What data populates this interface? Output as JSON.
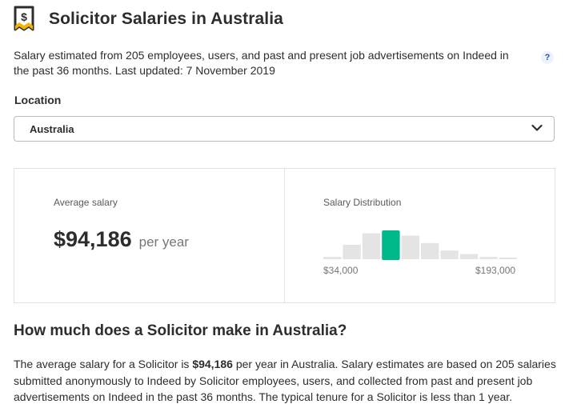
{
  "header": {
    "icon": "salary-dollar-icon",
    "title": "Solicitor Salaries in Australia"
  },
  "subtitle": "Salary estimated from 205 employees, users, and past and present job advertisements on Indeed in the past 36 months. Last updated: 7 November 2019",
  "help": {
    "label": "?",
    "icon": "help-question-icon"
  },
  "location": {
    "label": "Location",
    "selected": "Australia",
    "icon": "chevron-down-icon"
  },
  "average": {
    "label": "Average salary",
    "value": "$94,186",
    "period": "per year"
  },
  "distribution": {
    "label": "Salary Distribution",
    "min_label": "$34,000",
    "max_label": "$193,000",
    "highlight_color": "#00b98a",
    "bar_color": "#e4e4e4"
  },
  "chart_data": {
    "type": "bar",
    "title": "Salary Distribution",
    "xlabel": "",
    "ylabel": "",
    "x_range": [
      "$34,000",
      "$193,000"
    ],
    "categories": [
      1,
      2,
      3,
      4,
      5,
      6,
      7,
      8,
      9,
      10
    ],
    "values": [
      0.08,
      0.5,
      0.9,
      1.0,
      0.82,
      0.56,
      0.3,
      0.18,
      0.08,
      0.03
    ],
    "highlight_index": 3
  },
  "section": {
    "heading": "How much does a Solicitor make in Australia?",
    "text_before": "The average salary for a Solicitor is ",
    "text_bold": "$94,186",
    "text_after": " per year in Australia. Salary estimates are based on 205 salaries submitted anonymously to Indeed by Solicitor employees, users, and collected from past and present job advertisements on Indeed in the past 36 months. The typical tenure for a Solicitor is less than 1 year."
  }
}
